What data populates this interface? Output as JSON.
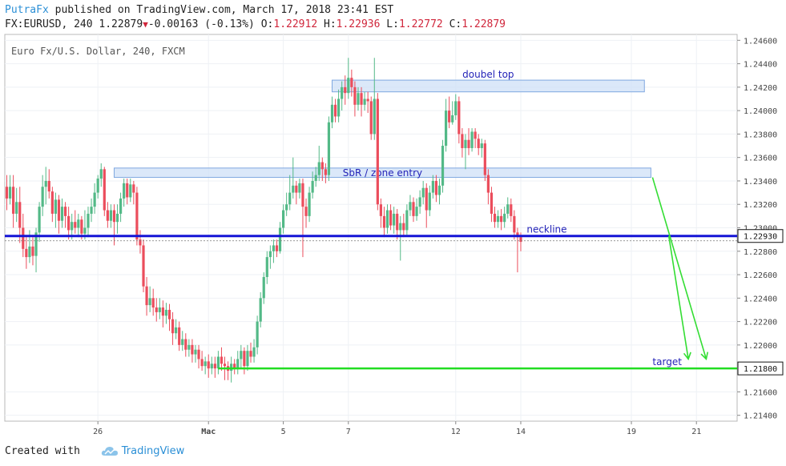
{
  "header": {
    "author": "PutraFx",
    "published_text": " published on TradingView.com, March 17, 2018 23:41 EST",
    "symbol": "FX:EURUSD, 240",
    "last_price": "1.22879",
    "change": "-0.00163 (-0.13%)",
    "o_label": "O:",
    "o_value": "1.22912",
    "h_label": "H:",
    "h_value": "1.22936",
    "l_label": "L:",
    "l_value": "1.22772",
    "c_label": "C:",
    "c_value": "1.22879"
  },
  "footer": {
    "created_with": "Created with",
    "brand": "TradingView"
  },
  "colors": {
    "up": "#53b987",
    "down": "#eb4d5c",
    "neckline": "#1515d6",
    "target": "#22dd22",
    "zone": "#cfe0f7",
    "zone_border": "#7fa8e0"
  },
  "chart_data": {
    "type": "candlestick",
    "title": "Euro Fx/U.S. Dollar, 240, FXCM",
    "ylim": [
      1.2135,
      1.2465
    ],
    "y_ticks": [
      "1.24600",
      "1.24400",
      "1.24200",
      "1.24000",
      "1.23800",
      "1.23600",
      "1.23400",
      "1.23200",
      "1.23000",
      "1.22800",
      "1.22600",
      "1.22400",
      "1.22200",
      "1.22000",
      "1.21600",
      "1.21400"
    ],
    "y_tick_values": [
      1.246,
      1.244,
      1.242,
      1.24,
      1.238,
      1.236,
      1.234,
      1.232,
      1.23,
      1.228,
      1.226,
      1.224,
      1.222,
      1.22,
      1.216,
      1.214
    ],
    "x_ticks": [
      "26",
      "Mac",
      "5",
      "7",
      "12",
      "14",
      "19",
      "21"
    ],
    "x_tick_index": [
      28,
      62,
      85,
      105,
      138,
      158,
      192,
      212
    ],
    "current_price_label": "1.22930",
    "current_price": 1.2293,
    "target_price_label": "1.21800",
    "target_price": 1.218,
    "zones": [
      {
        "label": "doubel top",
        "y1": 1.2426,
        "y2": 1.2416,
        "x_start": 100,
        "x_end": 196
      },
      {
        "label": "SbR / zone entry",
        "y1": 1.2351,
        "y2": 1.2343,
        "x_start": 33,
        "x_end": 198
      }
    ],
    "neckline": {
      "label": "neckline",
      "value": 1.2293
    },
    "target_line": {
      "label": "target",
      "value": 1.218,
      "x_start": 65
    },
    "candles": [
      [
        1.2335,
        1.2325,
        1.2345,
        1.2315
      ],
      [
        1.2325,
        1.2335,
        1.2345,
        1.232
      ],
      [
        1.2335,
        1.2312,
        1.2345,
        1.23
      ],
      [
        1.2312,
        1.2322,
        1.2334,
        1.2305
      ],
      [
        1.2322,
        1.23,
        1.2335,
        1.2287
      ],
      [
        1.23,
        1.2282,
        1.2312,
        1.2275
      ],
      [
        1.2282,
        1.2275,
        1.2292,
        1.2265
      ],
      [
        1.2275,
        1.2284,
        1.2298,
        1.227
      ],
      [
        1.2284,
        1.2276,
        1.2292,
        1.2268
      ],
      [
        1.2276,
        1.2296,
        1.23,
        1.2262
      ],
      [
        1.2296,
        1.2318,
        1.2322,
        1.2288
      ],
      [
        1.2318,
        1.2335,
        1.2345,
        1.231
      ],
      [
        1.2335,
        1.234,
        1.2352,
        1.232
      ],
      [
        1.234,
        1.2331,
        1.235,
        1.2325
      ],
      [
        1.2331,
        1.2312,
        1.2335,
        1.2305
      ],
      [
        1.2312,
        1.2324,
        1.233,
        1.23
      ],
      [
        1.2324,
        1.2306,
        1.2328,
        1.2295
      ],
      [
        1.2306,
        1.2318,
        1.2325,
        1.23
      ],
      [
        1.2318,
        1.231,
        1.2322,
        1.23
      ],
      [
        1.231,
        1.2298,
        1.2318,
        1.229
      ],
      [
        1.2298,
        1.2305,
        1.2312,
        1.229
      ],
      [
        1.2305,
        1.23,
        1.2315,
        1.2295
      ],
      [
        1.23,
        1.2307,
        1.2312,
        1.2292
      ],
      [
        1.2307,
        1.2295,
        1.231,
        1.229
      ],
      [
        1.2295,
        1.23,
        1.2315,
        1.229
      ],
      [
        1.23,
        1.2312,
        1.2318,
        1.2292
      ],
      [
        1.2312,
        1.2318,
        1.2325,
        1.2305
      ],
      [
        1.2318,
        1.233,
        1.2338,
        1.2312
      ],
      [
        1.233,
        1.2342,
        1.2345,
        1.2325
      ],
      [
        1.2342,
        1.235,
        1.2355,
        1.2335
      ],
      [
        1.235,
        1.2315,
        1.2352,
        1.231
      ],
      [
        1.2315,
        1.2306,
        1.2322,
        1.23
      ],
      [
        1.2306,
        1.2315,
        1.232,
        1.23
      ],
      [
        1.2315,
        1.2305,
        1.232,
        1.2285
      ],
      [
        1.2305,
        1.2312,
        1.232,
        1.2295
      ],
      [
        1.2312,
        1.2325,
        1.233,
        1.2305
      ],
      [
        1.2325,
        1.2338,
        1.2342,
        1.2318
      ],
      [
        1.2338,
        1.2326,
        1.2342,
        1.232
      ],
      [
        1.2326,
        1.2337,
        1.2342,
        1.2322
      ],
      [
        1.2337,
        1.233,
        1.234,
        1.232
      ],
      [
        1.233,
        1.229,
        1.2335,
        1.2285
      ],
      [
        1.229,
        1.2285,
        1.2298,
        1.2278
      ],
      [
        1.2285,
        1.225,
        1.229,
        1.2245
      ],
      [
        1.225,
        1.2234,
        1.2258,
        1.2225
      ],
      [
        1.2234,
        1.224,
        1.225,
        1.2228
      ],
      [
        1.224,
        1.2232,
        1.2248,
        1.2225
      ],
      [
        1.2232,
        1.2228,
        1.224,
        1.222
      ],
      [
        1.2228,
        1.2232,
        1.224,
        1.2222
      ],
      [
        1.2232,
        1.2225,
        1.2238,
        1.2215
      ],
      [
        1.2225,
        1.223,
        1.2236,
        1.2218
      ],
      [
        1.223,
        1.2222,
        1.2235,
        1.2212
      ],
      [
        1.2222,
        1.221,
        1.2228,
        1.22
      ],
      [
        1.221,
        1.2215,
        1.2222,
        1.2205
      ],
      [
        1.2215,
        1.22,
        1.222,
        1.2195
      ],
      [
        1.22,
        1.2205,
        1.2212,
        1.2195
      ],
      [
        1.2205,
        1.2196,
        1.221,
        1.219
      ],
      [
        1.2196,
        1.22,
        1.2205,
        1.219
      ],
      [
        1.22,
        1.2192,
        1.2205,
        1.2185
      ],
      [
        1.2192,
        1.2196,
        1.22,
        1.2185
      ],
      [
        1.2196,
        1.2188,
        1.22,
        1.218
      ],
      [
        1.2188,
        1.2182,
        1.2195,
        1.2178
      ],
      [
        1.2182,
        1.2186,
        1.219,
        1.2175
      ],
      [
        1.2186,
        1.218,
        1.2192,
        1.2172
      ],
      [
        1.218,
        1.2184,
        1.219,
        1.2175
      ],
      [
        1.2184,
        1.218,
        1.219,
        1.2172
      ],
      [
        1.218,
        1.219,
        1.2195,
        1.2175
      ],
      [
        1.219,
        1.2184,
        1.2198,
        1.2178
      ],
      [
        1.2184,
        1.2182,
        1.219,
        1.217
      ],
      [
        1.2182,
        1.2178,
        1.2186,
        1.217
      ],
      [
        1.2178,
        1.2184,
        1.219,
        1.2168
      ],
      [
        1.2184,
        1.218,
        1.2188,
        1.2175
      ],
      [
        1.218,
        1.2188,
        1.2195,
        1.2175
      ],
      [
        1.2188,
        1.2195,
        1.22,
        1.218
      ],
      [
        1.2195,
        1.2182,
        1.2198,
        1.2175
      ],
      [
        1.2182,
        1.2195,
        1.22,
        1.2178
      ],
      [
        1.2195,
        1.219,
        1.2202,
        1.2185
      ],
      [
        1.219,
        1.2198,
        1.2205,
        1.2185
      ],
      [
        1.2198,
        1.222,
        1.2225,
        1.2192
      ],
      [
        1.222,
        1.224,
        1.2245,
        1.2215
      ],
      [
        1.224,
        1.2258,
        1.2262,
        1.2235
      ],
      [
        1.2258,
        1.2275,
        1.228,
        1.2252
      ],
      [
        1.2275,
        1.228,
        1.2285,
        1.2265
      ],
      [
        1.228,
        1.2285,
        1.229,
        1.227
      ],
      [
        1.2285,
        1.228,
        1.229,
        1.2275
      ],
      [
        1.228,
        1.23,
        1.2305,
        1.2278
      ],
      [
        1.23,
        1.2315,
        1.232,
        1.2295
      ],
      [
        1.2315,
        1.232,
        1.233,
        1.231
      ],
      [
        1.232,
        1.233,
        1.2345,
        1.2315
      ],
      [
        1.233,
        1.2336,
        1.236,
        1.2325
      ],
      [
        1.2336,
        1.233,
        1.234,
        1.232
      ],
      [
        1.233,
        1.2338,
        1.2342,
        1.2325
      ],
      [
        1.2338,
        1.2318,
        1.2342,
        1.2275
      ],
      [
        1.2318,
        1.231,
        1.2325,
        1.23
      ],
      [
        1.231,
        1.233,
        1.2335,
        1.2305
      ],
      [
        1.233,
        1.234,
        1.2348,
        1.2325
      ],
      [
        1.234,
        1.2345,
        1.2352,
        1.2335
      ],
      [
        1.2345,
        1.2356,
        1.237,
        1.234
      ],
      [
        1.2356,
        1.235,
        1.236,
        1.234
      ],
      [
        1.235,
        1.2345,
        1.2355,
        1.2338
      ],
      [
        1.2345,
        1.239,
        1.2395,
        1.234
      ],
      [
        1.239,
        1.2405,
        1.2412,
        1.2385
      ],
      [
        1.2405,
        1.2395,
        1.241,
        1.239
      ],
      [
        1.2395,
        1.241,
        1.2418,
        1.239
      ],
      [
        1.241,
        1.242,
        1.2425,
        1.24
      ],
      [
        1.242,
        1.2415,
        1.243,
        1.2405
      ],
      [
        1.2415,
        1.2428,
        1.2445,
        1.241
      ],
      [
        1.2428,
        1.242,
        1.2435,
        1.2412
      ],
      [
        1.242,
        1.2405,
        1.2425,
        1.2395
      ],
      [
        1.2405,
        1.2415,
        1.242,
        1.24
      ],
      [
        1.2415,
        1.2405,
        1.242,
        1.2395
      ],
      [
        1.2405,
        1.241,
        1.2416,
        1.24
      ],
      [
        1.241,
        1.2408,
        1.2416,
        1.2398
      ],
      [
        1.2408,
        1.238,
        1.2412,
        1.2375
      ],
      [
        1.238,
        1.241,
        1.2445,
        1.2375
      ],
      [
        1.241,
        1.232,
        1.2415,
        1.2315
      ],
      [
        1.232,
        1.231,
        1.2325,
        1.23
      ],
      [
        1.231,
        1.23,
        1.2318,
        1.2292
      ],
      [
        1.23,
        1.2315,
        1.232,
        1.2295
      ],
      [
        1.2315,
        1.2302,
        1.232,
        1.2298
      ],
      [
        1.2302,
        1.2312,
        1.2318,
        1.2295
      ],
      [
        1.2312,
        1.2298,
        1.2316,
        1.229
      ],
      [
        1.2298,
        1.2304,
        1.231,
        1.2272
      ],
      [
        1.2304,
        1.2298,
        1.2312,
        1.2292
      ],
      [
        1.2298,
        1.2315,
        1.232,
        1.2294
      ],
      [
        1.2315,
        1.2322,
        1.2328,
        1.231
      ],
      [
        1.2322,
        1.231,
        1.2326,
        1.2305
      ],
      [
        1.231,
        1.2318,
        1.2325,
        1.2306
      ],
      [
        1.2318,
        1.2326,
        1.2332,
        1.2312
      ],
      [
        1.2326,
        1.2334,
        1.234,
        1.232
      ],
      [
        1.2334,
        1.2315,
        1.2338,
        1.23
      ],
      [
        1.2315,
        1.233,
        1.2336,
        1.231
      ],
      [
        1.233,
        1.234,
        1.2345,
        1.2325
      ],
      [
        1.234,
        1.2328,
        1.2345,
        1.2322
      ],
      [
        1.2328,
        1.2336,
        1.2342,
        1.232
      ],
      [
        1.2336,
        1.237,
        1.2375,
        1.233
      ],
      [
        1.237,
        1.24,
        1.241,
        1.2365
      ],
      [
        1.24,
        1.239,
        1.2412,
        1.2385
      ],
      [
        1.239,
        1.2396,
        1.2408,
        1.2388
      ],
      [
        1.2396,
        1.2408,
        1.2414,
        1.2392
      ],
      [
        1.2408,
        1.238,
        1.2412,
        1.2372
      ],
      [
        1.238,
        1.2368,
        1.2385,
        1.236
      ],
      [
        1.2368,
        1.2375,
        1.238,
        1.235
      ],
      [
        1.2375,
        1.2368,
        1.2385,
        1.2362
      ],
      [
        1.2368,
        1.2382,
        1.2385,
        1.2365
      ],
      [
        1.2382,
        1.2376,
        1.2385,
        1.2368
      ],
      [
        1.2376,
        1.2368,
        1.238,
        1.2362
      ],
      [
        1.2368,
        1.2372,
        1.2376,
        1.236
      ],
      [
        1.2372,
        1.2345,
        1.2375,
        1.234
      ],
      [
        1.2345,
        1.233,
        1.235,
        1.232
      ],
      [
        1.233,
        1.2312,
        1.2335,
        1.2305
      ],
      [
        1.2312,
        1.2305,
        1.2318,
        1.23
      ],
      [
        1.2305,
        1.231,
        1.2315,
        1.23
      ],
      [
        1.231,
        1.2305,
        1.2316,
        1.2298
      ],
      [
        1.2305,
        1.2312,
        1.2318,
        1.23
      ],
      [
        1.2312,
        1.232,
        1.2326,
        1.2308
      ],
      [
        1.232,
        1.231,
        1.2325,
        1.2305
      ],
      [
        1.231,
        1.2296,
        1.2315,
        1.229
      ],
      [
        1.2296,
        1.2292,
        1.23,
        1.2262
      ],
      [
        1.2292,
        1.2288,
        1.2296,
        1.228
      ]
    ]
  }
}
